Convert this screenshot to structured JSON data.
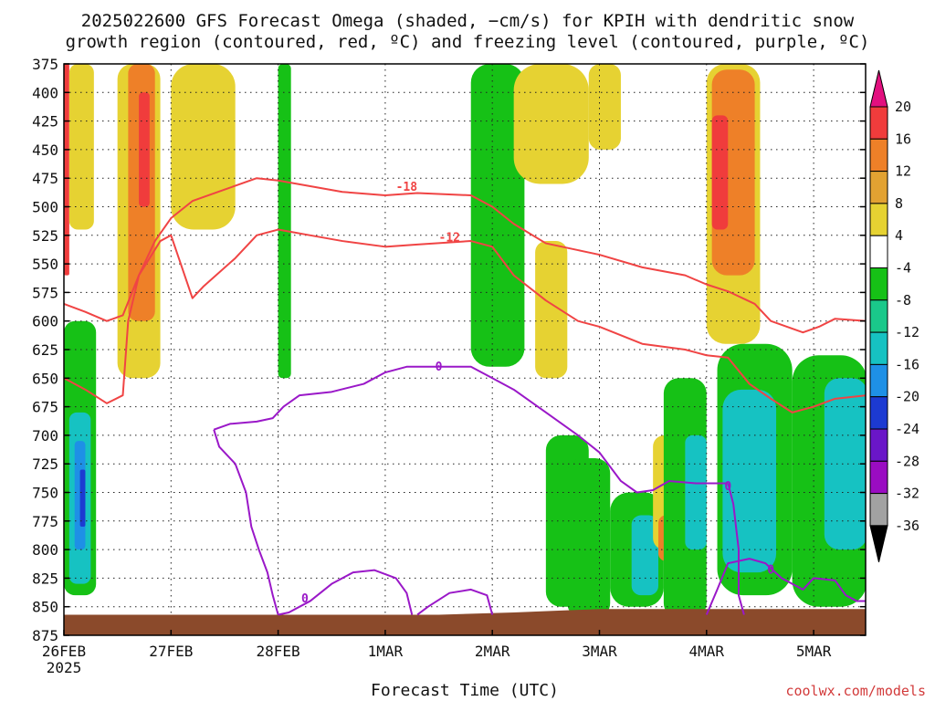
{
  "chart_data": {
    "type": "heatmap",
    "title_lines": [
      "2025022600 GFS Forecast Omega (shaded, −cm/s) for KPIH with dendritic snow",
      "growth region (contoured, red, ºC) and freezing level (contoured, purple, ºC)"
    ],
    "xlabel": "Forecast Time (UTC)",
    "x_ticks": [
      "26FEB",
      "27FEB",
      "28FEB",
      "1MAR",
      "2MAR",
      "3MAR",
      "4MAR",
      "5MAR"
    ],
    "x_year": "2025",
    "y_ticks": [
      375,
      400,
      425,
      450,
      475,
      500,
      525,
      550,
      575,
      600,
      625,
      650,
      675,
      700,
      725,
      750,
      775,
      800,
      825,
      850,
      875
    ],
    "ylim": [
      875,
      375
    ],
    "xlim_days": [
      0,
      7.5
    ],
    "grid": true,
    "colorbar": {
      "labels": [
        20,
        16,
        12,
        8,
        4,
        -4,
        -8,
        -12,
        -16,
        -20,
        -24,
        -28,
        -32,
        -36
      ],
      "colors": [
        "#e2107f",
        "#f03c3c",
        "#ee8028",
        "#e2a232",
        "#e6d232",
        "#ffffff",
        "#16c116",
        "#1ac88a",
        "#16c2c2",
        "#1e90e6",
        "#1c3ad2",
        "#6a16c8",
        "#9a0cc2",
        "#a2a2a2",
        "#000000"
      ]
    },
    "colors": {
      "dgz_contour": "#f04444",
      "freezing_contour": "#9a18c8",
      "ground": "#8b4a2b"
    },
    "omega_blobs": [
      {
        "x0": 0.0,
        "x1": 0.05,
        "p0": 375,
        "p1": 560,
        "v": 16
      },
      {
        "x0": 0.05,
        "x1": 0.28,
        "p0": 375,
        "p1": 520,
        "v": 6
      },
      {
        "x0": 0.5,
        "x1": 0.9,
        "p0": 375,
        "p1": 650,
        "v": 6
      },
      {
        "x0": 0.6,
        "x1": 0.85,
        "p0": 375,
        "p1": 600,
        "v": 12
      },
      {
        "x0": 0.7,
        "x1": 0.8,
        "p0": 400,
        "p1": 500,
        "v": 16
      },
      {
        "x0": 1.0,
        "x1": 1.6,
        "p0": 375,
        "p1": 520,
        "v": 5
      },
      {
        "x0": 0.0,
        "x1": 0.3,
        "p0": 600,
        "p1": 840,
        "v": -8
      },
      {
        "x0": 0.05,
        "x1": 0.25,
        "p0": 680,
        "p1": 830,
        "v": -13
      },
      {
        "x0": 0.1,
        "x1": 0.2,
        "p0": 705,
        "p1": 800,
        "v": -18
      },
      {
        "x0": 0.15,
        "x1": 0.2,
        "p0": 730,
        "p1": 780,
        "v": -21
      },
      {
        "x0": 2.0,
        "x1": 2.12,
        "p0": 375,
        "p1": 650,
        "v": -6
      },
      {
        "x0": 3.8,
        "x1": 4.3,
        "p0": 375,
        "p1": 640,
        "v": -6
      },
      {
        "x0": 4.2,
        "x1": 4.9,
        "p0": 375,
        "p1": 480,
        "v": 5
      },
      {
        "x0": 4.4,
        "x1": 4.7,
        "p0": 530,
        "p1": 650,
        "v": 6
      },
      {
        "x0": 4.5,
        "x1": 4.9,
        "p0": 700,
        "p1": 850,
        "v": -8
      },
      {
        "x0": 4.7,
        "x1": 5.1,
        "p0": 720,
        "p1": 860,
        "v": -6
      },
      {
        "x0": 4.9,
        "x1": 5.2,
        "p0": 375,
        "p1": 450,
        "v": 5
      },
      {
        "x0": 5.1,
        "x1": 5.6,
        "p0": 750,
        "p1": 850,
        "v": -7
      },
      {
        "x0": 5.3,
        "x1": 5.55,
        "p0": 770,
        "p1": 840,
        "v": -13
      },
      {
        "x0": 5.5,
        "x1": 5.8,
        "p0": 700,
        "p1": 800,
        "v": 6
      },
      {
        "x0": 5.55,
        "x1": 5.75,
        "p0": 770,
        "p1": 810,
        "v": 12
      },
      {
        "x0": 5.6,
        "x1": 6.0,
        "p0": 650,
        "p1": 860,
        "v": -7
      },
      {
        "x0": 5.8,
        "x1": 6.0,
        "p0": 700,
        "p1": 800,
        "v": -13
      },
      {
        "x0": 6.0,
        "x1": 6.5,
        "p0": 375,
        "p1": 620,
        "v": 6
      },
      {
        "x0": 6.05,
        "x1": 6.45,
        "p0": 380,
        "p1": 560,
        "v": 12
      },
      {
        "x0": 6.05,
        "x1": 6.2,
        "p0": 420,
        "p1": 520,
        "v": 17
      },
      {
        "x0": 6.1,
        "x1": 6.8,
        "p0": 620,
        "p1": 840,
        "v": -7
      },
      {
        "x0": 6.15,
        "x1": 6.65,
        "p0": 660,
        "p1": 820,
        "v": -13
      },
      {
        "x0": 6.8,
        "x1": 7.5,
        "p0": 630,
        "p1": 850,
        "v": -7
      },
      {
        "x0": 7.1,
        "x1": 7.5,
        "p0": 650,
        "p1": 800,
        "v": -13
      }
    ],
    "contours_dgz": [
      {
        "label": "-18",
        "points": [
          [
            0.0,
            585
          ],
          [
            0.2,
            592
          ],
          [
            0.4,
            600
          ],
          [
            0.55,
            595
          ],
          [
            0.7,
            560
          ],
          [
            0.85,
            530
          ],
          [
            1.0,
            510
          ],
          [
            1.2,
            495
          ],
          [
            1.5,
            485
          ],
          [
            1.8,
            475
          ],
          [
            2.0,
            477
          ],
          [
            2.3,
            482
          ],
          [
            2.6,
            487
          ],
          [
            3.0,
            490
          ],
          [
            3.3,
            488
          ],
          [
            3.8,
            490
          ],
          [
            4.0,
            500
          ],
          [
            4.2,
            515
          ],
          [
            4.5,
            532
          ],
          [
            4.8,
            538
          ],
          [
            5.0,
            542
          ],
          [
            5.4,
            553
          ],
          [
            5.8,
            560
          ],
          [
            6.0,
            568
          ],
          [
            6.2,
            574
          ],
          [
            6.45,
            585
          ],
          [
            6.6,
            600
          ],
          [
            6.9,
            610
          ],
          [
            7.05,
            605
          ],
          [
            7.2,
            598
          ],
          [
            7.5,
            600
          ]
        ],
        "label_at": [
          3.2,
          483
        ]
      },
      {
        "label": "-12",
        "points": [
          [
            0.0,
            650
          ],
          [
            0.2,
            660
          ],
          [
            0.4,
            672
          ],
          [
            0.55,
            665
          ],
          [
            0.6,
            600
          ],
          [
            0.7,
            560
          ],
          [
            0.9,
            530
          ],
          [
            1.0,
            525
          ],
          [
            1.2,
            580
          ],
          [
            1.3,
            570
          ],
          [
            1.6,
            545
          ],
          [
            1.8,
            525
          ],
          [
            2.0,
            520
          ],
          [
            2.3,
            525
          ],
          [
            2.6,
            530
          ],
          [
            3.0,
            535
          ],
          [
            3.3,
            533
          ],
          [
            3.8,
            530
          ],
          [
            4.0,
            535
          ],
          [
            4.2,
            560
          ],
          [
            4.5,
            582
          ],
          [
            4.8,
            600
          ],
          [
            5.0,
            605
          ],
          [
            5.4,
            620
          ],
          [
            5.8,
            625
          ],
          [
            6.0,
            630
          ],
          [
            6.2,
            632
          ],
          [
            6.4,
            655
          ],
          [
            6.6,
            668
          ],
          [
            6.8,
            680
          ],
          [
            7.0,
            675
          ],
          [
            7.2,
            668
          ],
          [
            7.5,
            665
          ]
        ],
        "label_at": [
          3.6,
          527
        ]
      }
    ],
    "contours_frz": [
      {
        "label": "0",
        "points": [
          [
            1.4,
            695
          ],
          [
            1.45,
            710
          ],
          [
            1.6,
            725
          ],
          [
            1.7,
            750
          ],
          [
            1.75,
            780
          ],
          [
            1.82,
            800
          ],
          [
            1.9,
            820
          ],
          [
            1.95,
            840
          ],
          [
            2.0,
            857
          ]
        ],
        "label_at": null
      },
      {
        "label": "0",
        "points": [
          [
            1.4,
            695
          ],
          [
            1.55,
            690
          ],
          [
            1.8,
            688
          ],
          [
            1.95,
            685
          ],
          [
            2.05,
            675
          ],
          [
            2.2,
            665
          ],
          [
            2.5,
            662
          ],
          [
            2.8,
            655
          ],
          [
            3.0,
            645
          ],
          [
            3.2,
            640
          ],
          [
            3.5,
            640
          ],
          [
            3.8,
            640
          ],
          [
            4.0,
            650
          ],
          [
            4.2,
            660
          ],
          [
            4.5,
            680
          ],
          [
            4.8,
            700
          ],
          [
            5.0,
            715
          ],
          [
            5.2,
            740
          ],
          [
            5.35,
            750
          ],
          [
            5.5,
            748
          ],
          [
            5.65,
            740
          ],
          [
            5.9,
            742
          ],
          [
            6.2,
            742
          ]
        ],
        "label_at": [
          3.5,
          640
        ]
      },
      {
        "label": "0",
        "points": [
          [
            2.0,
            857
          ],
          [
            2.1,
            855
          ],
          [
            2.3,
            845
          ],
          [
            2.5,
            830
          ],
          [
            2.7,
            820
          ],
          [
            2.9,
            818
          ],
          [
            3.1,
            825
          ],
          [
            3.2,
            838
          ],
          [
            3.25,
            857
          ]
        ],
        "label_at": [
          2.25,
          843
        ]
      },
      {
        "label": "0",
        "points": [
          [
            3.3,
            857
          ],
          [
            3.4,
            850
          ],
          [
            3.6,
            838
          ],
          [
            3.8,
            835
          ],
          [
            3.95,
            840
          ],
          [
            4.0,
            857
          ]
        ],
        "label_at": null
      },
      {
        "label": "0",
        "points": [
          [
            6.2,
            742
          ],
          [
            6.25,
            760
          ],
          [
            6.3,
            800
          ],
          [
            6.3,
            840
          ],
          [
            6.35,
            857
          ]
        ],
        "label_at": [
          6.2,
          745
        ]
      },
      {
        "label": "0",
        "points": [
          [
            6.0,
            857
          ],
          [
            6.1,
            835
          ],
          [
            6.2,
            812
          ],
          [
            6.4,
            808
          ],
          [
            6.55,
            812
          ],
          [
            6.7,
            825
          ],
          [
            6.9,
            835
          ],
          [
            7.0,
            825
          ],
          [
            7.2,
            827
          ],
          [
            7.3,
            840
          ],
          [
            7.4,
            845
          ],
          [
            7.5,
            845
          ]
        ],
        "label_at": [
          6.6,
          818
        ]
      }
    ],
    "ground_top": [
      [
        0,
        857
      ],
      [
        3.5,
        857
      ],
      [
        4.2,
        855
      ],
      [
        5.0,
        852
      ],
      [
        7.5,
        852
      ]
    ]
  },
  "credit": "coolwx.com/models"
}
